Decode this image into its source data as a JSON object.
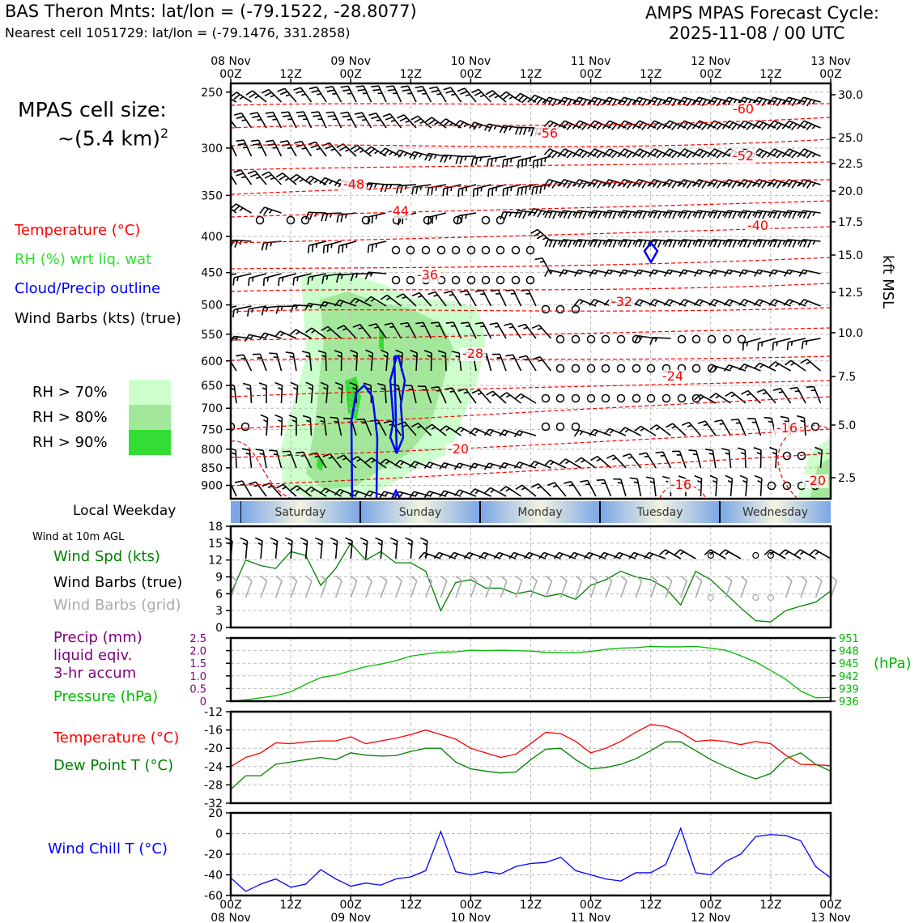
{
  "header": {
    "left_line1": "BAS Theron Mnts: lat/lon = (-79.1522, -28.8077)",
    "left_line2": "Nearest cell 1051729: lat/lon = (-79.1476, 331.2858)",
    "right_line1": "AMPS MPAS Forecast Cycle:",
    "right_line2": "2025-11-08 / 00 UTC"
  },
  "side": {
    "cell_size_label": "MPAS cell size:",
    "cell_size_value": "~(5.4 km)",
    "cell_size_exp": "2",
    "legend_temperature": "Temperature (°C)",
    "legend_rh": "RH (%) wrt liq. wat",
    "legend_cloud": "Cloud/Precip outline",
    "legend_wind": "Wind Barbs (kts) (true)",
    "rh70": "RH > 70%",
    "rh80": "RH > 80%",
    "rh90": "RH > 90%",
    "local_weekday": "Local Weekday",
    "wind10m": "Wind at 10m AGL",
    "wind_spd": "Wind Spd (kts)",
    "wind_barbs_true": "Wind Barbs (true)",
    "wind_barbs_grid": "Wind Barbs (grid)",
    "precip1": "Precip (mm)",
    "precip2": "liquid eqiv.",
    "precip3": "3-hr accum",
    "pressure": "Pressure (hPa)",
    "temperature": "Temperature (°C)",
    "dewpoint": "Dew Point T (°C)",
    "windchill": "Wind Chill T (°C)",
    "hpa_unit": "(hPa)",
    "kft_msl": "kft MSL"
  },
  "colors": {
    "temp": "#ff0000",
    "rh_label": "#33dd33",
    "cloud": "#0000ff",
    "rh70": "#ccffcc",
    "rh80": "#a3e89a",
    "rh90": "#33dd33",
    "wind_spd": "#008000",
    "grid_barb": "#aaaaaa",
    "precip": "#800080",
    "pressure": "#00bb00",
    "windchill": "#0000ff"
  },
  "chart_data": [
    {
      "type": "cross-section",
      "top_time_labels": [
        {
          "day": "08 Nov",
          "hour": "00Z"
        },
        {
          "day": "",
          "hour": "12Z"
        },
        {
          "day": "09 Nov",
          "hour": "00Z"
        },
        {
          "day": "",
          "hour": "12Z"
        },
        {
          "day": "10 Nov",
          "hour": "00Z"
        },
        {
          "day": "",
          "hour": "12Z"
        },
        {
          "day": "11 Nov",
          "hour": "00Z"
        },
        {
          "day": "",
          "hour": "12Z"
        },
        {
          "day": "12 Nov",
          "hour": "00Z"
        },
        {
          "day": "",
          "hour": "12Z"
        },
        {
          "day": "13 Nov",
          "hour": "00Z"
        }
      ],
      "pressure_levels": [
        "250",
        "300",
        "350",
        "400",
        "450",
        "500",
        "550",
        "600",
        "650",
        "700",
        "750",
        "800",
        "850",
        "900"
      ],
      "height_labels": [
        "30.0",
        "25.0",
        "22.5",
        "20.0",
        "17.5",
        "15.0",
        "12.5",
        "10.0",
        "7.5",
        "5.0",
        "2.5"
      ],
      "height_units": "kft MSL",
      "temperature_contour_labels": [
        "-60",
        "-56",
        "-52",
        "-48",
        "-44",
        "-40",
        "-36",
        "-32",
        "-28",
        "-24",
        "-20",
        "-16",
        "-16",
        "-20"
      ]
    },
    {
      "type": "weekday-bar",
      "days": [
        "Saturday",
        "Sunday",
        "Monday",
        "Tuesday",
        "Wednesday"
      ]
    },
    {
      "type": "line",
      "title": "Wind at 10m AGL",
      "ylabel": "Wind Spd (kts)",
      "yticks": [
        "18",
        "15",
        "12",
        "9",
        "6",
        "3",
        "0"
      ],
      "ylim": [
        0,
        18
      ],
      "x_hours": [
        0,
        3,
        6,
        9,
        12,
        15,
        18,
        21,
        24,
        27,
        30,
        33,
        36,
        39,
        42,
        45,
        48,
        51,
        54,
        57,
        60,
        63,
        66,
        69,
        72,
        75,
        78,
        81,
        84,
        87,
        90,
        93,
        96,
        99,
        102,
        105,
        108,
        111,
        114,
        117,
        120
      ],
      "series": [
        {
          "name": "Wind Spd",
          "values": [
            6,
            12,
            11,
            10.5,
            13.5,
            12.8,
            7.5,
            10.5,
            15,
            12,
            13.5,
            11.5,
            11.5,
            10,
            3,
            8,
            8.5,
            7,
            7,
            6,
            6.5,
            5.5,
            6,
            5,
            7.5,
            8.5,
            10,
            9,
            8.5,
            7,
            4,
            10,
            8.5,
            6,
            3.5,
            1.2,
            1,
            3,
            3.8,
            4.5,
            6.5
          ]
        }
      ]
    },
    {
      "type": "line",
      "ylabel_left": "Precip (mm)",
      "yticks_left": [
        "2.5",
        "2.0",
        "1.5",
        "1.0",
        "0.5",
        "0"
      ],
      "ylabel_right": "Pressure (hPa)",
      "yticks_right": [
        "951",
        "948",
        "945",
        "942",
        "939",
        "936"
      ],
      "ylim_right": [
        936,
        951
      ],
      "x_hours": [
        0,
        3,
        6,
        9,
        12,
        15,
        18,
        21,
        24,
        27,
        30,
        33,
        36,
        39,
        42,
        45,
        48,
        51,
        54,
        57,
        60,
        63,
        66,
        69,
        72,
        75,
        78,
        81,
        84,
        87,
        90,
        93,
        96,
        99,
        102,
        105,
        108,
        111,
        114,
        117,
        120
      ],
      "series": [
        {
          "name": "Pressure",
          "values": [
            936,
            936.3,
            936.8,
            937.3,
            938.2,
            940,
            941.6,
            942.2,
            943.2,
            944.2,
            944.8,
            945.6,
            946.7,
            947.2,
            947.6,
            947.7,
            948.1,
            948,
            948.1,
            948,
            947.9,
            947.6,
            947.5,
            947.5,
            947.8,
            948.3,
            948.6,
            948.7,
            949,
            948.9,
            948.9,
            949,
            948.6,
            948.1,
            946.8,
            945.3,
            943.3,
            941.2,
            938.4,
            936.8,
            936.9
          ]
        }
      ]
    },
    {
      "type": "line",
      "yticks": [
        "-12",
        "-16",
        "-20",
        "-24",
        "-28",
        "-32"
      ],
      "ylim": [
        -32,
        -12
      ],
      "x_hours": [
        0,
        3,
        6,
        9,
        12,
        15,
        18,
        21,
        24,
        27,
        30,
        33,
        36,
        39,
        42,
        45,
        48,
        51,
        54,
        57,
        60,
        63,
        66,
        69,
        72,
        75,
        78,
        81,
        84,
        87,
        90,
        93,
        96,
        99,
        102,
        105,
        108,
        111,
        114,
        117,
        120
      ],
      "series": [
        {
          "name": "Temperature",
          "values": [
            -24,
            -22,
            -21,
            -18.8,
            -19,
            -18.6,
            -18.4,
            -18.4,
            -17.5,
            -19,
            -18.4,
            -17.8,
            -17,
            -16,
            -17,
            -18,
            -20,
            -21,
            -22,
            -21.3,
            -19,
            -16.5,
            -16.8,
            -18.5,
            -21,
            -20,
            -18.5,
            -16.5,
            -14.8,
            -15.2,
            -16.5,
            -18.5,
            -18.2,
            -18.5,
            -19.2,
            -18.5,
            -19,
            -21.5,
            -23.5,
            -23.6,
            -23.8
          ]
        },
        {
          "name": "Dew Point",
          "values": [
            -29,
            -26,
            -26,
            -23.5,
            -23,
            -22.5,
            -22,
            -22.5,
            -21,
            -21.5,
            -21.7,
            -21.6,
            -20.7,
            -20,
            -20,
            -23,
            -24.5,
            -25,
            -25.4,
            -25.2,
            -22.5,
            -20.2,
            -20,
            -22.5,
            -24.5,
            -24.2,
            -23.5,
            -22.3,
            -20.5,
            -18.6,
            -18.6,
            -20.5,
            -22.5,
            -24,
            -25.5,
            -26.7,
            -25.5,
            -22.3,
            -21,
            -23.5,
            -25
          ]
        }
      ]
    },
    {
      "type": "line",
      "yticks": [
        "20",
        "0",
        "-20",
        "-40",
        "-60"
      ],
      "ylim": [
        -60,
        20
      ],
      "x_hours": [
        0,
        3,
        6,
        9,
        12,
        15,
        18,
        21,
        24,
        27,
        30,
        33,
        36,
        39,
        42,
        45,
        48,
        51,
        54,
        57,
        60,
        63,
        66,
        69,
        72,
        75,
        78,
        81,
        84,
        87,
        90,
        93,
        96,
        99,
        102,
        105,
        108,
        111,
        114,
        117,
        120
      ],
      "series": [
        {
          "name": "Wind Chill",
          "values": [
            -43,
            -56,
            -49,
            -44,
            -52,
            -49,
            -35,
            -44,
            -51,
            -48,
            -50,
            -44,
            -42,
            -36,
            2,
            -37,
            -40,
            -37,
            -39,
            -32,
            -29,
            -28,
            -23,
            -36,
            -40,
            -44,
            -46,
            -38,
            -38,
            -30,
            5,
            -38,
            -40,
            -27,
            -20,
            -3,
            -1,
            -2,
            -7,
            -32,
            -43
          ]
        }
      ]
    }
  ],
  "bottom_time_labels": [
    {
      "hour": "00Z",
      "day": "08 Nov"
    },
    {
      "hour": "12Z",
      "day": ""
    },
    {
      "hour": "00Z",
      "day": "09 Nov"
    },
    {
      "hour": "12Z",
      "day": ""
    },
    {
      "hour": "00Z",
      "day": "10 Nov"
    },
    {
      "hour": "12Z",
      "day": ""
    },
    {
      "hour": "00Z",
      "day": "11 Nov"
    },
    {
      "hour": "12Z",
      "day": ""
    },
    {
      "hour": "00Z",
      "day": "12 Nov"
    },
    {
      "hour": "12Z",
      "day": ""
    },
    {
      "hour": "00Z",
      "day": "13 Nov"
    }
  ]
}
